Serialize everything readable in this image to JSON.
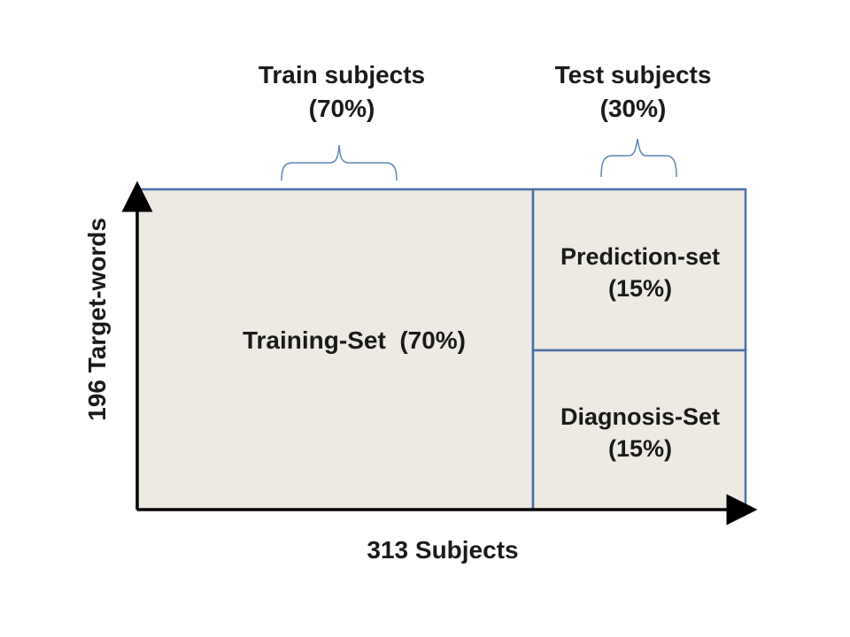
{
  "diagram": {
    "top_labels": {
      "train_subjects": "Train subjects",
      "train_subjects_pct": "(70%)",
      "test_subjects": "Test subjects",
      "test_subjects_pct": "(30%)"
    },
    "regions": {
      "training_set": "Training-Set  (70%)",
      "prediction_set": "Prediction-set",
      "prediction_set_pct": "(15%)",
      "diagnosis_set": "Diagnosis-Set",
      "diagnosis_set_pct": "(15%)"
    },
    "axes": {
      "x_label": "313 Subjects",
      "y_label": "196 Target-words"
    },
    "colors": {
      "region_fill": "#eceae2",
      "border": "#4a6fa5",
      "bracket": "#5b86b8",
      "axis": "#000000"
    }
  }
}
